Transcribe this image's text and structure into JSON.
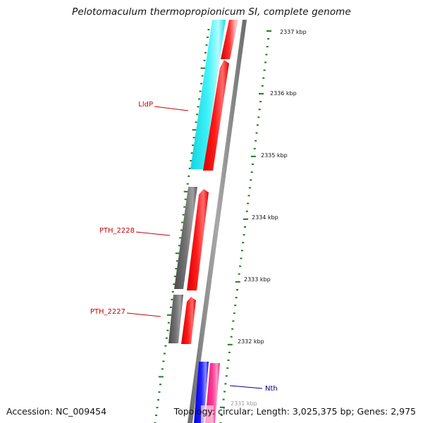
{
  "title": "Pelotomaculum thermopropionicum SI, complete genome",
  "footer": {
    "accession": "Accession: NC_009454",
    "topology": "Topology: circular; Length: 3,025,375 bp; Genes: 2,975"
  },
  "colors": {
    "background": "#ffffff",
    "backbone": "#8c8c8c",
    "tick": "#1e7d1e",
    "forward_strand_gene": "#ff1010",
    "lldp_gene": "#22e6ee",
    "hypothetical_gene": "#6a6a6a",
    "nth_gene_blue": "#1010ff",
    "nth_gene_pink": "#ff2f8a",
    "label_red": "#cc0000",
    "label_blue": "#00008b"
  },
  "scale_labels": [
    "2337 kbp",
    "2336 kbp",
    "2335 kbp",
    "2334 kbp",
    "2333 kbp",
    "2332 kbp",
    "2331 kbp"
  ],
  "gene_labels": [
    {
      "name": "LldP",
      "color": "red"
    },
    {
      "name": "PTH_2228",
      "color": "red"
    },
    {
      "name": "PTH_2227",
      "color": "red"
    },
    {
      "name": "Nth",
      "color": "blue"
    }
  ]
}
